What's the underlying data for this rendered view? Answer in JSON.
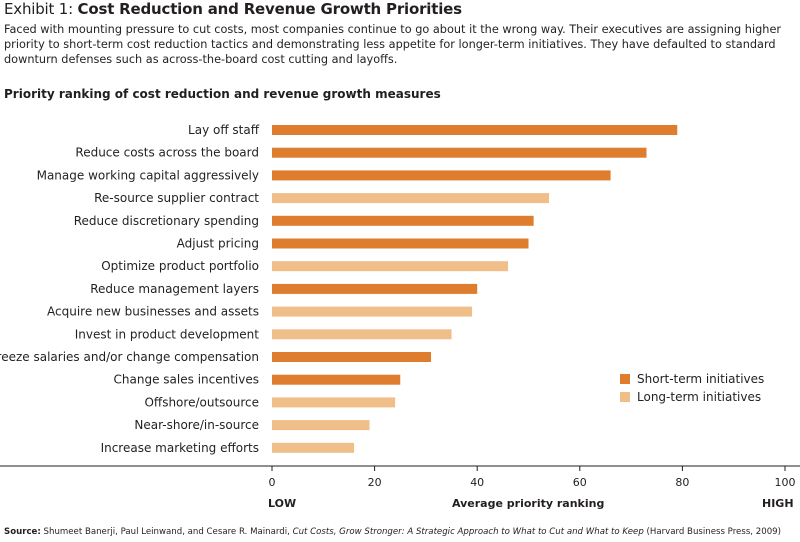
{
  "header": {
    "exhibit_label": "Exhibit 1:",
    "title": "Cost Reduction and Revenue Growth Priorities",
    "intro": "Faced with mounting pressure to cut costs, most companies continue to go about it the wrong way. Their executives are assigning higher priority to short-term cost reduction tactics and demonstrating less appetite for longer-term initiatives. They have defaulted to standard downturn defenses such as across-the-board cost cutting and layoffs."
  },
  "chart_data": {
    "type": "bar",
    "orientation": "horizontal",
    "title": "Priority ranking of cost reduction and revenue growth measures",
    "xlabel": "Average priority ranking",
    "x_low_label": "LOW",
    "x_high_label": "HIGH",
    "xlim": [
      0,
      100
    ],
    "xticks": [
      0,
      20,
      40,
      60,
      80,
      100
    ],
    "grid": false,
    "legend_position": "right",
    "series": [
      {
        "name": "Short-term initiatives",
        "color": "#de7d2d"
      },
      {
        "name": "Long-term initiatives",
        "color": "#f0be88"
      }
    ],
    "categories": [
      "Lay off staff",
      "Reduce costs across the board",
      "Manage working capital aggressively",
      "Re-source supplier contract",
      "Reduce discretionary spending",
      "Adjust pricing",
      "Optimize product portfolio",
      "Reduce management layers",
      "Acquire new businesses and assets",
      "Invest in product development",
      "Freeze salaries and/or change compensation",
      "Change sales incentives",
      "Offshore/outsource",
      "Near-shore/in-source",
      "Increase marketing efforts"
    ],
    "values": [
      79,
      73,
      66,
      54,
      51,
      50,
      46,
      40,
      39,
      35,
      31,
      25,
      24,
      19,
      16
    ],
    "bar_series": [
      "Short-term initiatives",
      "Short-term initiatives",
      "Short-term initiatives",
      "Long-term initiatives",
      "Short-term initiatives",
      "Short-term initiatives",
      "Long-term initiatives",
      "Short-term initiatives",
      "Long-term initiatives",
      "Long-term initiatives",
      "Short-term initiatives",
      "Short-term initiatives",
      "Long-term initiatives",
      "Long-term initiatives",
      "Long-term initiatives"
    ]
  },
  "source": {
    "label": "Source:",
    "authors": "Shumeet Banerji, Paul Leinwand, and Cesare R. Mainardi,",
    "book": "Cut Costs, Grow Stronger: A Strategic Approach to What to Cut and What to Keep",
    "publisher": "(Harvard Business Press, 2009)"
  }
}
